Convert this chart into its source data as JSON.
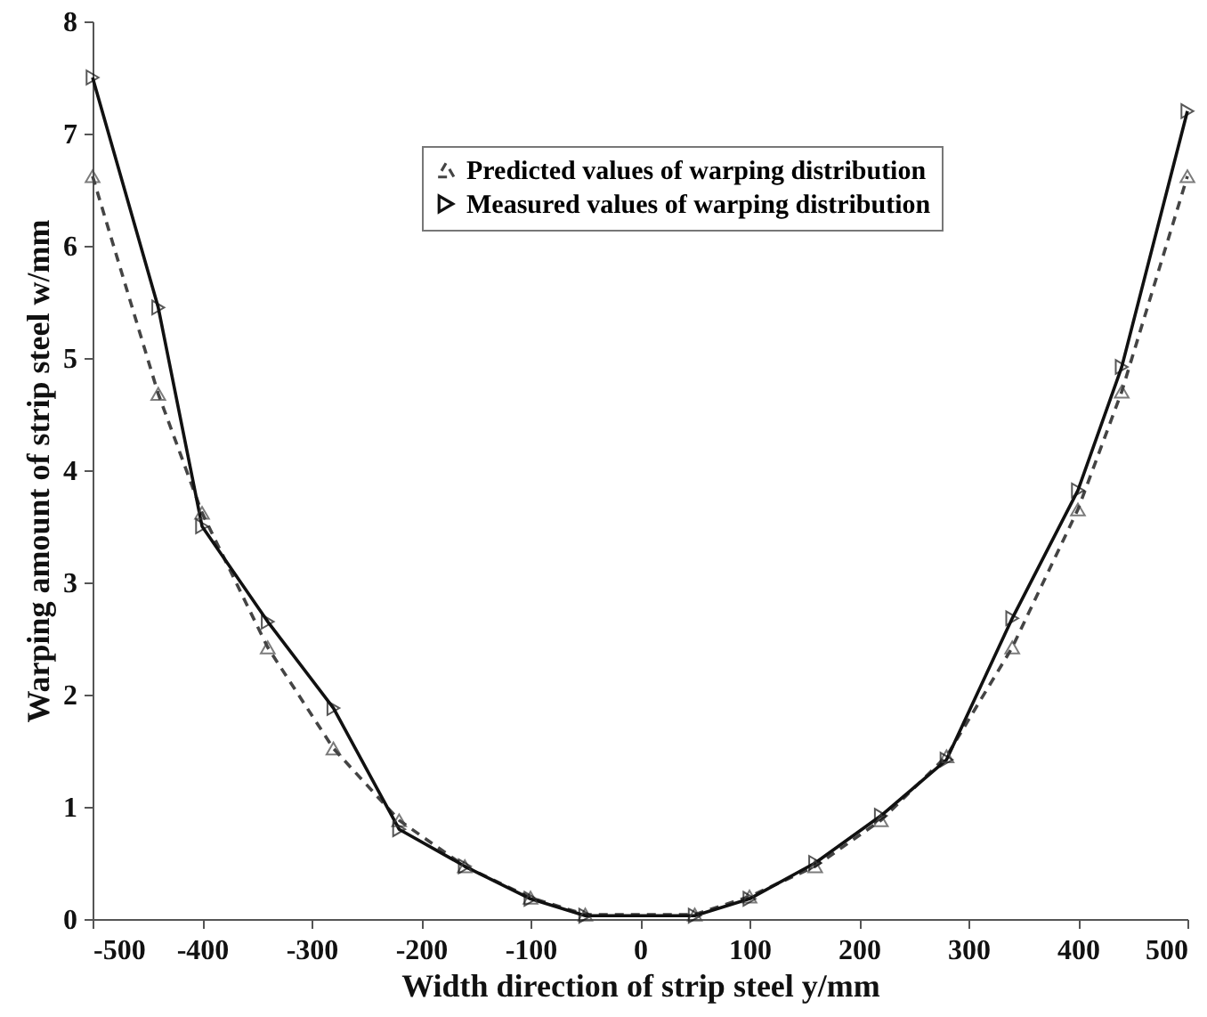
{
  "chart_data": {
    "type": "line",
    "xlabel": "Width direction of strip steel  y/mm",
    "ylabel": "Warping amount of strip steel  w/mm",
    "x": [
      -500,
      -440,
      -400,
      -340,
      -280,
      -220,
      -160,
      -100,
      -50,
      50,
      100,
      160,
      220,
      280,
      340,
      400,
      440,
      500
    ],
    "series": [
      {
        "name": "Predicted values of warping distribution",
        "color": "#444444",
        "line_style": "dashed",
        "marker": "triangle",
        "values": [
          6.62,
          4.68,
          3.62,
          2.42,
          1.52,
          0.88,
          0.47,
          0.19,
          0.04,
          0.04,
          0.2,
          0.47,
          0.88,
          1.45,
          2.42,
          3.65,
          4.7,
          6.62
        ]
      },
      {
        "name": "Measured values of warping distribution",
        "color": "#111111",
        "line_style": "solid",
        "marker": "triangle",
        "values": [
          7.5,
          5.45,
          3.5,
          2.65,
          1.88,
          0.8,
          0.47,
          0.18,
          0.03,
          0.03,
          0.18,
          0.5,
          0.92,
          1.42,
          2.68,
          3.82,
          4.92,
          7.2
        ]
      }
    ],
    "xlim": [
      -500,
      500
    ],
    "xticks": [
      -500,
      -400,
      -300,
      -200,
      -100,
      0,
      100,
      200,
      300,
      400,
      500
    ],
    "ylim": [
      0,
      8
    ],
    "yticks": [
      0,
      1,
      2,
      3,
      4,
      5,
      6,
      7,
      8
    ],
    "grid": false,
    "legend": "top"
  }
}
